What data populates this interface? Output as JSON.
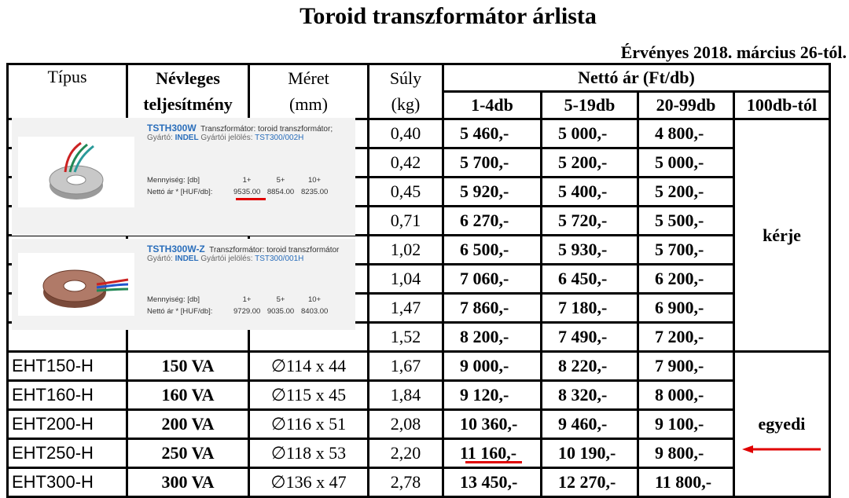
{
  "title": "Toroid transzformátor árlista",
  "valid_from": "Érvényes 2018. március 26-tól.",
  "headers": {
    "type": "Típus",
    "power_line1": "Névleges",
    "power_line2": "teljesítmény",
    "size_line1": "Méret",
    "size_line2": "(mm)",
    "weight_line1": "Súly",
    "weight_line2": "(kg)",
    "net_price": "Nettó ár (Ft/db)",
    "qty1": "1-4db",
    "qty2": "5-19db",
    "qty3": "20-99db",
    "qty4": "100db-tól"
  },
  "merged_column_text": {
    "upper": "kérje",
    "lower": "egyedi"
  },
  "rows": [
    {
      "type": "",
      "power": "",
      "size": "",
      "weight": "0,40",
      "p1": "5 460,-",
      "p2": "5 000,-",
      "p3": "4 800,-"
    },
    {
      "type": "",
      "power": "",
      "size": "",
      "weight": "0,42",
      "p1": "5 700,-",
      "p2": "5 200,-",
      "p3": "5 000,-"
    },
    {
      "type": "",
      "power": "",
      "size": "",
      "weight": "0,45",
      "p1": "5 920,-",
      "p2": "5 400,-",
      "p3": "5 200,-"
    },
    {
      "type": "",
      "power": "",
      "size": "",
      "weight": "0,71",
      "p1": "6 270,-",
      "p2": "5 720,-",
      "p3": "5 500,-"
    },
    {
      "type": "",
      "power": "",
      "size": "",
      "weight": "1,02",
      "p1": "6 500,-",
      "p2": "5 930,-",
      "p3": "5 700,-"
    },
    {
      "type": "",
      "power": "",
      "size": "",
      "weight": "1,04",
      "p1": "7 060,-",
      "p2": "6 450,-",
      "p3": "6 200,-"
    },
    {
      "type": "",
      "power": "",
      "size": "",
      "weight": "1,47",
      "p1": "7 860,-",
      "p2": "7 180,-",
      "p3": "6 900,-"
    },
    {
      "type": "",
      "power": "",
      "size": "",
      "weight": "1,52",
      "p1": "8 200,-",
      "p2": "7 490,-",
      "p3": "7 200,-"
    },
    {
      "type": "EHT150-H",
      "power": "150 VA",
      "size": "∅114 x 44",
      "weight": "1,67",
      "p1": "9 000,-",
      "p2": "8 220,-",
      "p3": "7 900,-"
    },
    {
      "type": "EHT160-H",
      "power": "160 VA",
      "size": "∅115 x 45",
      "weight": "1,84",
      "p1": "9 120,-",
      "p2": "8 320,-",
      "p3": "8 000,-"
    },
    {
      "type": "EHT200-H",
      "power": "200 VA",
      "size": "∅116 x 51",
      "weight": "2,08",
      "p1": "10 360,-",
      "p2": "9 460,-",
      "p3": "9 100,-"
    },
    {
      "type": "EHT250-H",
      "power": "250 VA",
      "size": "∅118 x 53",
      "weight": "2,20",
      "p1": "11 160,-",
      "p2": "10 190,-",
      "p3": "9 800,-"
    },
    {
      "type": "EHT300-H",
      "power": "300 VA",
      "size": "∅136 x 47",
      "weight": "2,78",
      "p1": "13 450,-",
      "p2": "12 270,-",
      "p3": "11 800,-"
    }
  ],
  "shop_items": [
    {
      "sku": "TSTH300W",
      "desc": "Transzformátor: toroid transzformátor;",
      "maker_label": "Gyártó:",
      "maker": "INDEL",
      "code_label": "Gyártói jelölés:",
      "code": "TST300/002H",
      "qty_label": "Mennyiség: [db]",
      "price_label": "Nettó ár * [HUF/db]:",
      "tiers": [
        "1+",
        "5+",
        "10+"
      ],
      "prices": [
        "9535.00",
        "8854.00",
        "8235.00"
      ]
    },
    {
      "sku": "TSTH300W-Z",
      "desc": "Transzformátor: toroid transzformátor",
      "maker_label": "Gyártó:",
      "maker": "INDEL",
      "code_label": "Gyártói jelölés:",
      "code": "TST300/001H",
      "qty_label": "Mennyiség: [db]",
      "price_label": "Nettó ár * [HUF/db]:",
      "tiers": [
        "1+",
        "5+",
        "10+"
      ],
      "prices": [
        "9729.00",
        "9035.00",
        "8403.00"
      ]
    }
  ],
  "colors": {
    "highlight": "#e00000",
    "link_blue": "#2a6ebb",
    "panel_bg": "#f2f2f2"
  }
}
